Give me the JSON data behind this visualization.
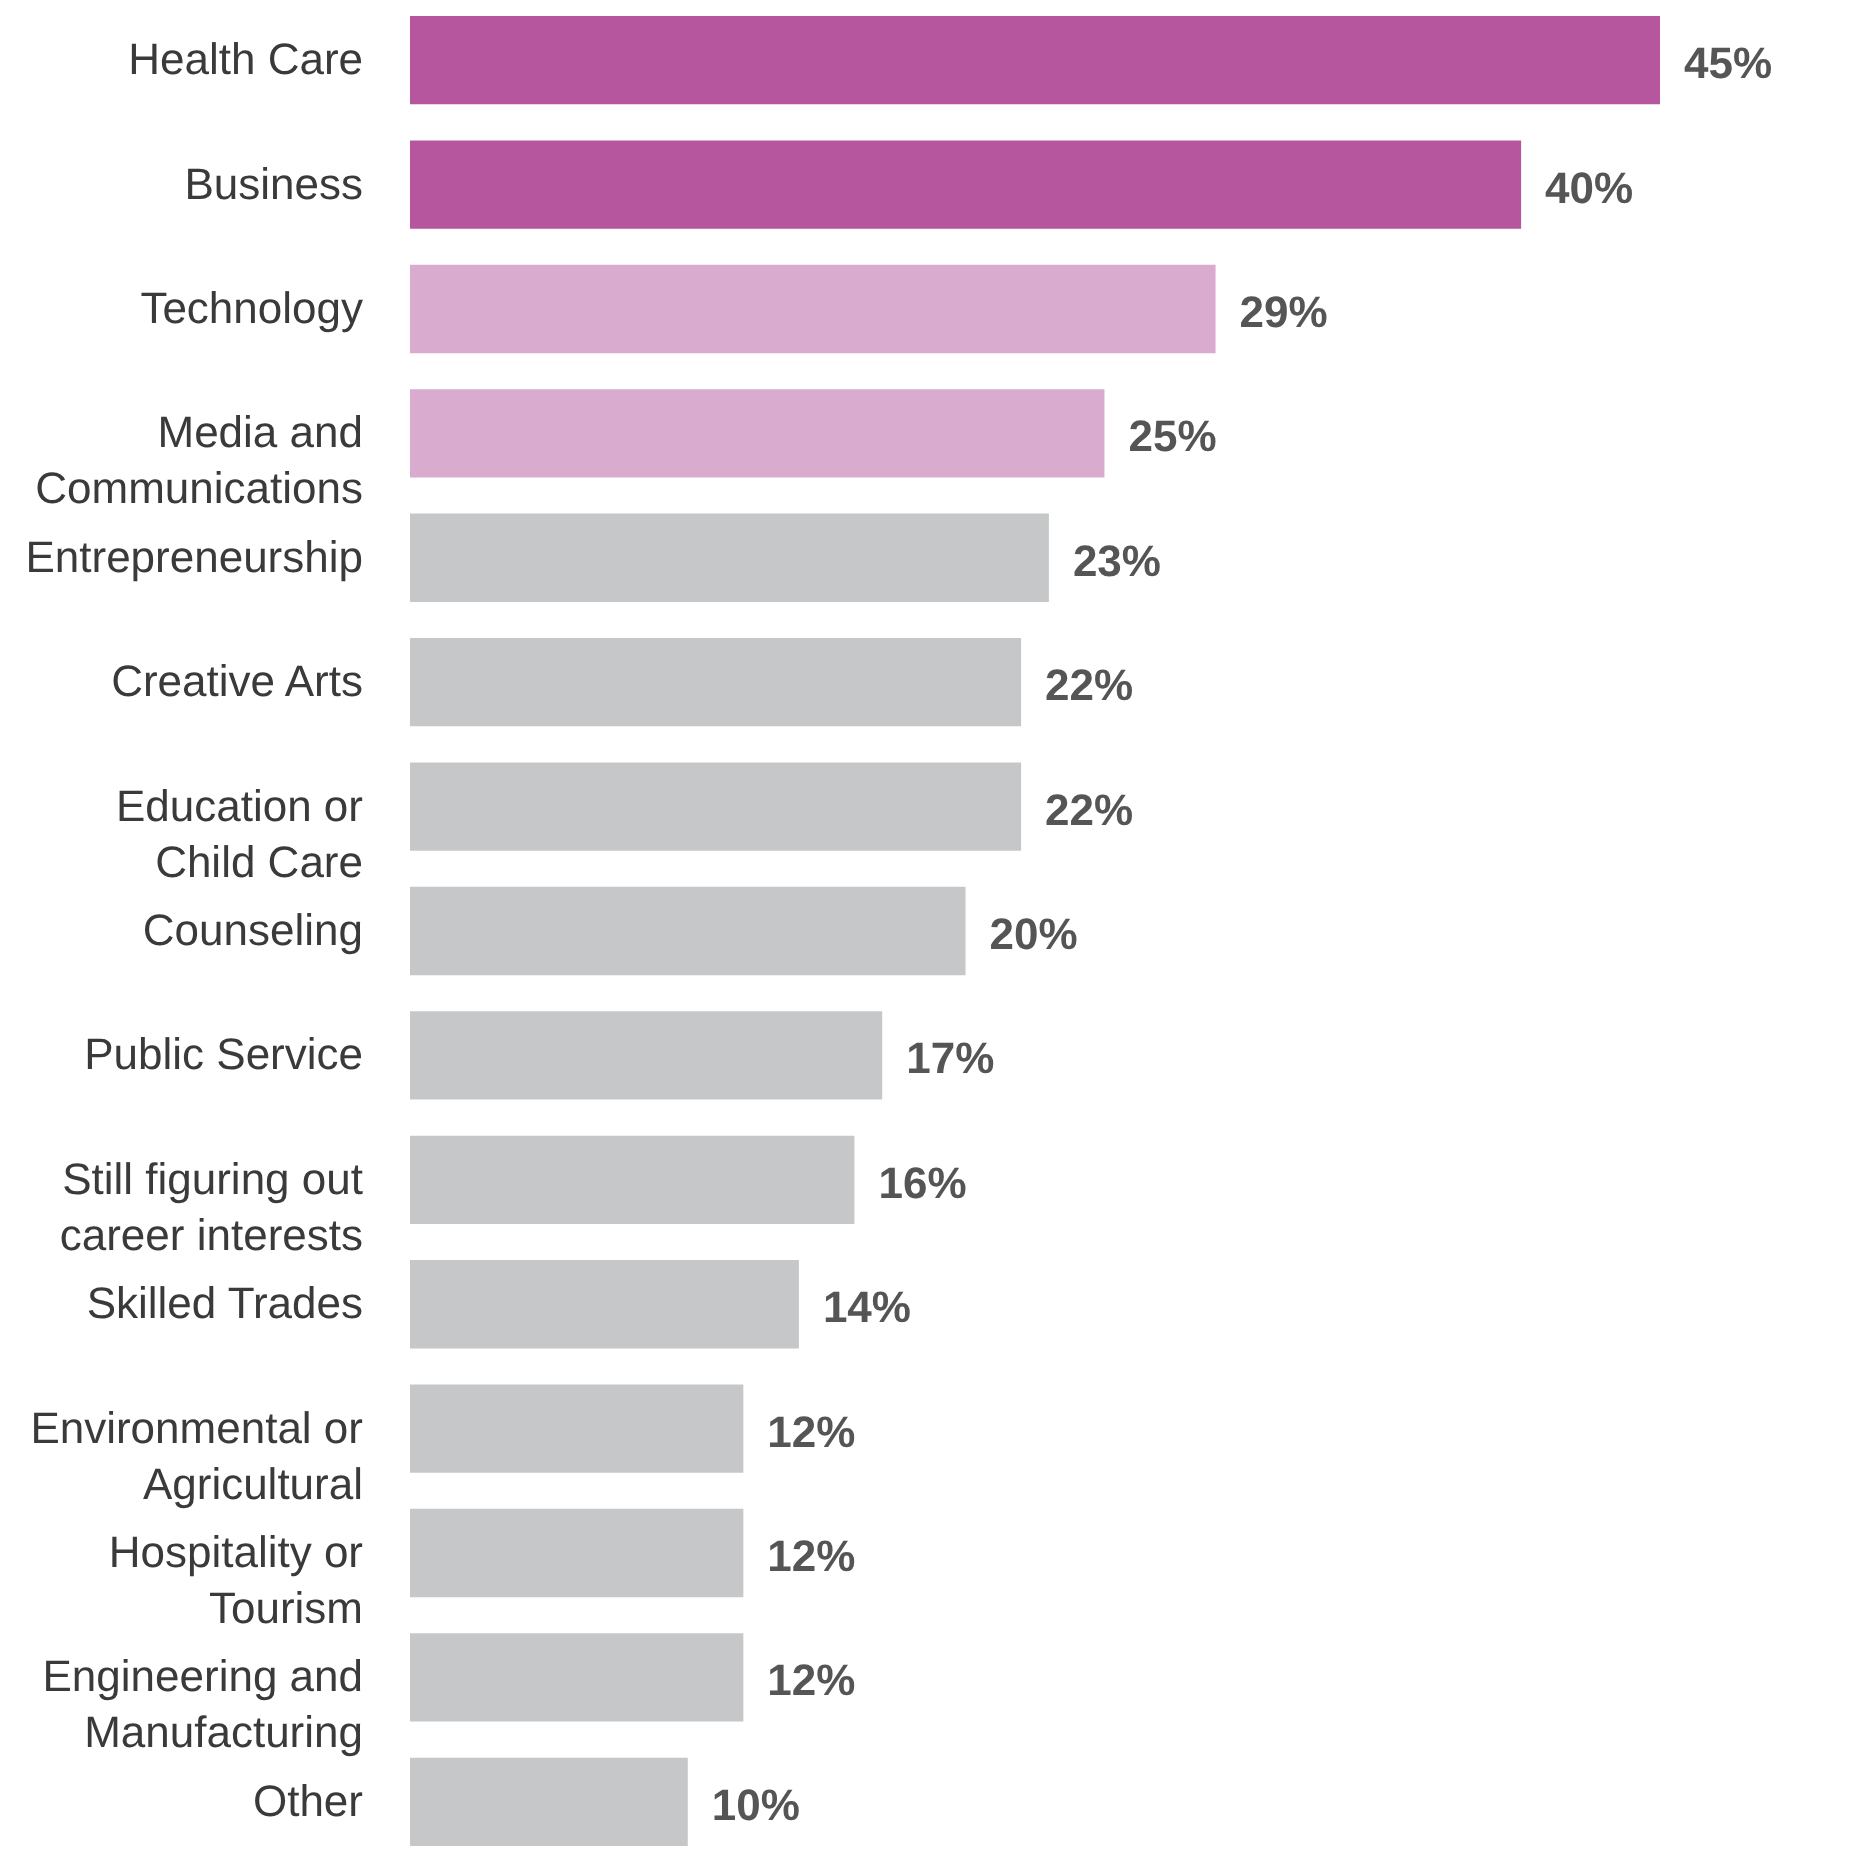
{
  "chart_data": {
    "type": "bar",
    "orientation": "horizontal",
    "categories": [
      "Health Care",
      "Business",
      "Technology",
      "Media and\nCommunications",
      "Entrepreneurship",
      "Creative Arts",
      "Education or\nChild Care",
      "Counseling",
      "Public Service",
      "Still figuring out\ncareer interests",
      "Skilled Trades",
      "Environmental or\nAgricultural",
      "Hospitality or\nTourism",
      "Engineering and\nManufacturing",
      "Other"
    ],
    "values": [
      45,
      40,
      29,
      25,
      23,
      22,
      22,
      20,
      17,
      16,
      14,
      12,
      12,
      12,
      10
    ],
    "value_labels": [
      "45%",
      "40%",
      "29%",
      "25%",
      "23%",
      "22%",
      "22%",
      "20%",
      "17%",
      "16%",
      "14%",
      "12%",
      "12%",
      "12%",
      "10%"
    ],
    "colors": [
      "#b5569f",
      "#b5569f",
      "#d8abcf",
      "#d8abcf",
      "#c6c7c9",
      "#c6c7c9",
      "#c6c7c9",
      "#c6c7c9",
      "#c6c7c9",
      "#c6c7c9",
      "#c6c7c9",
      "#c6c7c9",
      "#c6c7c9",
      "#c6c7c9",
      "#c6c7c9"
    ],
    "grid": false,
    "tick_labels": "y"
  }
}
